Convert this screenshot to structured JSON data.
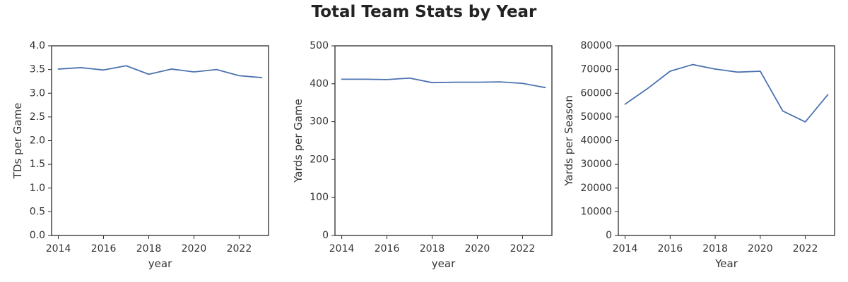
{
  "title": "Total Team Stats by Year",
  "colors": {
    "line": "#4c72b0",
    "axes": "#2b2b2b",
    "text": "#333333"
  },
  "chart_data": [
    {
      "type": "line",
      "xlabel": "year",
      "ylabel": "TDs per Game",
      "xlim": [
        2013.7,
        2023.3
      ],
      "ylim": [
        0,
        4.0
      ],
      "xticks": [
        2014,
        2016,
        2018,
        2020,
        2022
      ],
      "yticks": [
        "0.0",
        "0.5",
        "1.0",
        "1.5",
        "2.0",
        "2.5",
        "3.0",
        "3.5",
        "4.0"
      ],
      "grid": false,
      "x": [
        2014,
        2015,
        2016,
        2017,
        2018,
        2019,
        2020,
        2021,
        2022,
        2023
      ],
      "y": [
        3.51,
        3.54,
        3.49,
        3.58,
        3.4,
        3.51,
        3.45,
        3.5,
        3.37,
        3.33
      ]
    },
    {
      "type": "line",
      "xlabel": "year",
      "ylabel": "Yards per Game",
      "xlim": [
        2013.7,
        2023.3
      ],
      "ylim": [
        0,
        500
      ],
      "xticks": [
        2014,
        2016,
        2018,
        2020,
        2022
      ],
      "yticks": [
        "0",
        "100",
        "200",
        "300",
        "400",
        "500"
      ],
      "grid": false,
      "x": [
        2014,
        2015,
        2016,
        2017,
        2018,
        2019,
        2020,
        2021,
        2022,
        2023
      ],
      "y": [
        412,
        412,
        411,
        415,
        403,
        404,
        404,
        405,
        401,
        390
      ]
    },
    {
      "type": "line",
      "xlabel": "Year",
      "ylabel": "Yards per Season",
      "xlim": [
        2013.7,
        2023.3
      ],
      "ylim": [
        0,
        80000
      ],
      "xticks": [
        2014,
        2016,
        2018,
        2020,
        2022
      ],
      "yticks": [
        "0",
        "10000",
        "20000",
        "30000",
        "40000",
        "50000",
        "60000",
        "70000",
        "80000"
      ],
      "grid": false,
      "x": [
        2014,
        2015,
        2016,
        2017,
        2018,
        2019,
        2020,
        2021,
        2022,
        2023
      ],
      "y": [
        55400,
        62000,
        69300,
        72100,
        70200,
        68900,
        69300,
        52500,
        47900,
        59400
      ]
    }
  ]
}
